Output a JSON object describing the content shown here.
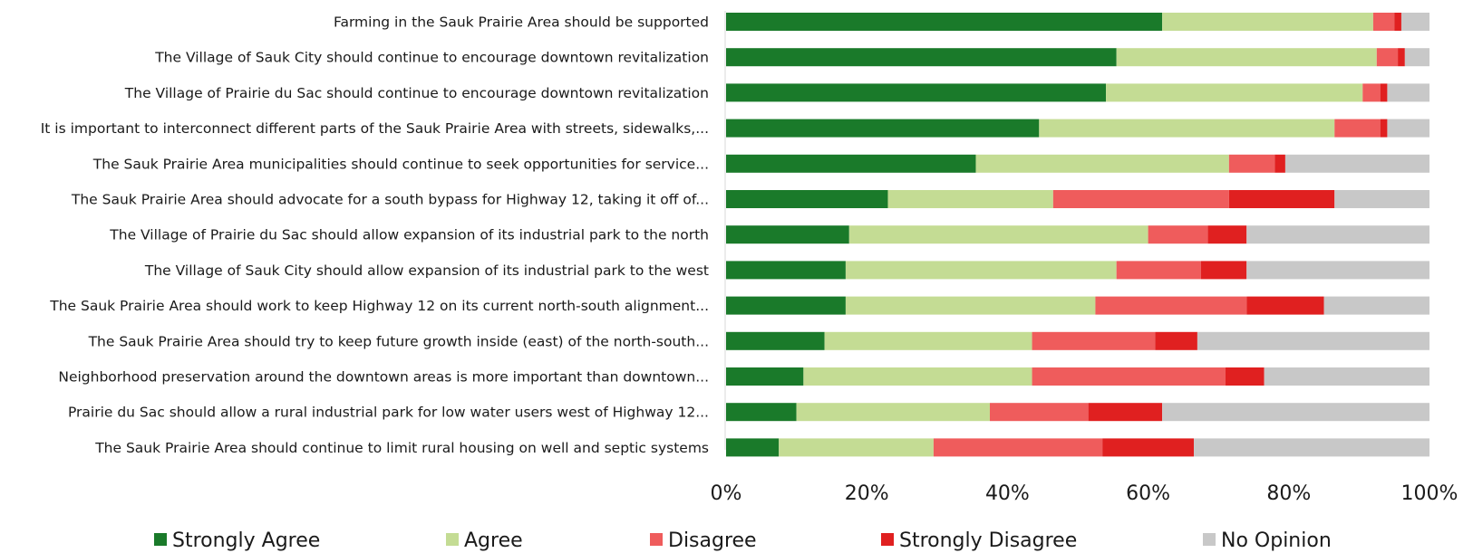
{
  "chart_data": {
    "type": "bar",
    "orientation": "horizontal",
    "stacked": true,
    "categories": [
      "Farming in the Sauk Prairie Area should be supported",
      "The Village of Sauk City should continue to encourage downtown revitalization",
      "The Village of Prairie du Sac should continue to encourage downtown revitalization",
      "It is important to interconnect different parts of the Sauk Prairie Area with streets, sidewalks,...",
      "The Sauk Prairie Area municipalities should continue to seek opportunities for service...",
      "The Sauk Prairie Area should advocate for a south bypass for Highway 12, taking it off of...",
      "The Village of Prairie du Sac should allow expansion of its industrial park to the north",
      "The Village of Sauk City should allow expansion of its industrial park to the west",
      "The Sauk Prairie Area should work to keep Highway 12 on its current north-south alignment...",
      "The Sauk Prairie Area should try to keep future growth inside (east) of the north-south...",
      "Neighborhood preservation around the downtown areas is more important than downtown...",
      "Prairie du Sac should allow a rural industrial park for low water users west of Highway 12...",
      "The Sauk Prairie Area should continue to limit rural housing on well and septic systems"
    ],
    "series": [
      {
        "name": "Strongly Agree",
        "color": "#1a7a2a",
        "values": [
          62,
          55.5,
          54,
          44.5,
          35.5,
          23,
          17.5,
          17,
          17,
          14,
          11,
          10,
          7.5
        ]
      },
      {
        "name": "Agree",
        "color": "#c4dc94",
        "values": [
          30,
          37,
          36.5,
          42,
          36,
          23.5,
          42.5,
          38.5,
          35.5,
          29.5,
          32.5,
          27.5,
          22
        ]
      },
      {
        "name": "Disagree",
        "color": "#ef5c5c",
        "values": [
          3,
          3,
          2.5,
          6.5,
          6.5,
          25,
          8.5,
          12,
          21.5,
          17.5,
          27.5,
          14,
          24
        ]
      },
      {
        "name": "Strongly Disagree",
        "color": "#e02020",
        "values": [
          1,
          1,
          1,
          1,
          1.5,
          15,
          5.5,
          6.5,
          11,
          6,
          5.5,
          10.5,
          13
        ]
      },
      {
        "name": "No Opinion",
        "color": "#c8c8c8",
        "values": [
          4,
          3.5,
          6,
          6,
          20.5,
          13.5,
          26,
          26,
          15,
          33,
          23.5,
          38,
          33.5
        ]
      }
    ],
    "x_ticks": [
      "0%",
      "20%",
      "40%",
      "60%",
      "80%",
      "100%"
    ],
    "xlim": [
      0,
      100
    ],
    "xlabel": "",
    "ylabel": "",
    "title": "",
    "grid": false,
    "legend_position": "bottom"
  }
}
